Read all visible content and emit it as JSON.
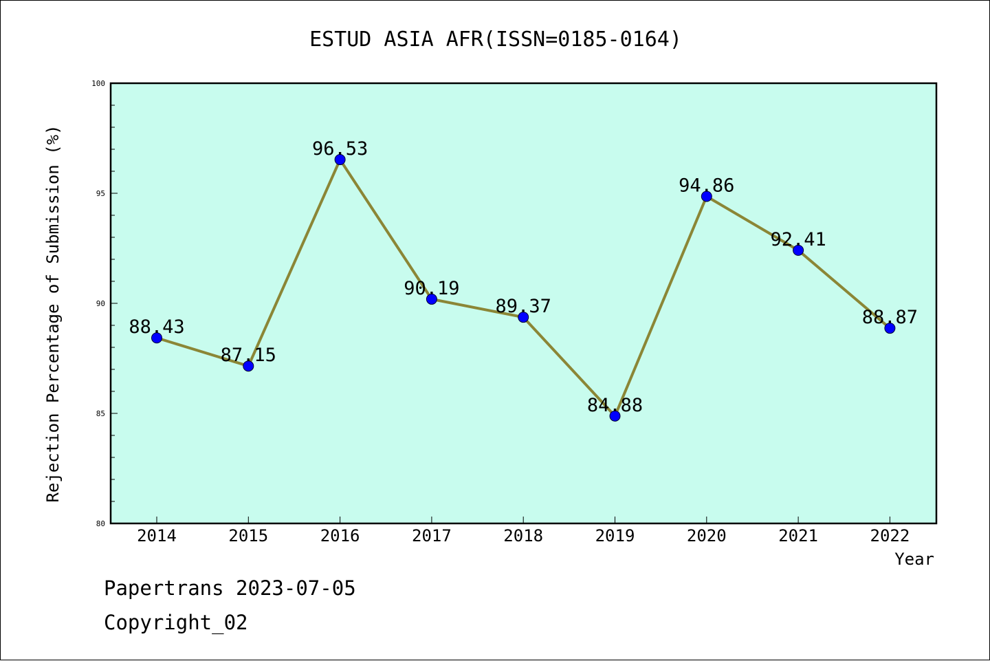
{
  "footer": {
    "line1": "Papertrans 2023-07-05",
    "line2": "Copyright_02"
  },
  "colors": {
    "plot_background": "#c8fcee",
    "line": "#8b8636",
    "marker": "#0000ff",
    "axes": "#000000"
  },
  "chart_data": {
    "type": "line",
    "title": "ESTUD ASIA AFR(ISSN=0185-0164)",
    "xlabel": "Year",
    "ylabel": "Rejection Percentage of Submission (%)",
    "categories": [
      "2014",
      "2015",
      "2016",
      "2017",
      "2018",
      "2019",
      "2020",
      "2021",
      "2022"
    ],
    "series": [
      {
        "values": [
          88.43,
          87.15,
          96.53,
          90.19,
          89.37,
          84.88,
          94.86,
          92.41,
          88.87
        ],
        "labels": [
          "88.43",
          "87.15",
          "96.53",
          "90.19",
          "89.37",
          "84.88",
          "94.86",
          "92.41",
          "88.87"
        ]
      }
    ],
    "ylim": [
      80,
      100
    ],
    "yticks": [
      "80",
      "85",
      "90",
      "95",
      "100"
    ],
    "grid": false,
    "legend": "none"
  }
}
